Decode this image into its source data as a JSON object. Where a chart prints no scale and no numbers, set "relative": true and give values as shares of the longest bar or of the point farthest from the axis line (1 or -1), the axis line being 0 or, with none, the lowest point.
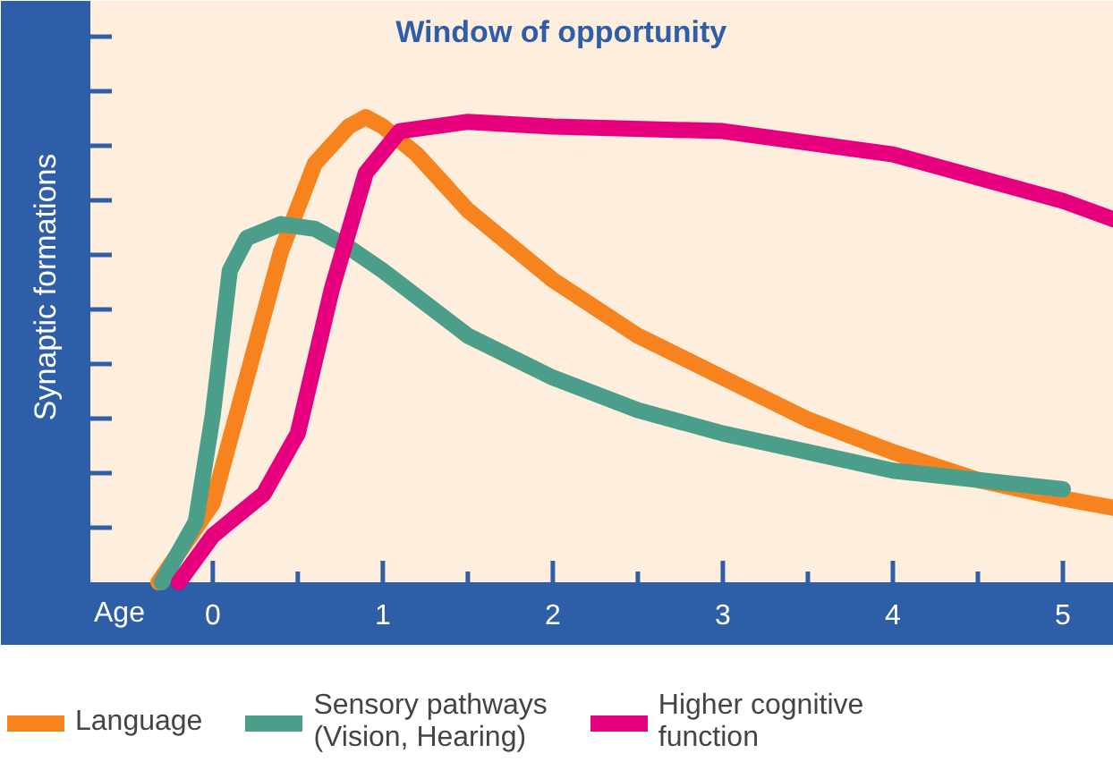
{
  "chart_data": {
    "type": "line",
    "title": "Window of opportunity",
    "xlabel": "Age",
    "ylabel": "Synaptic formations",
    "relative": true,
    "xlim": [
      -0.72,
      5.3
    ],
    "xticks": [
      0,
      1,
      2,
      3,
      4,
      5
    ],
    "grid": false,
    "legend": "bottom",
    "marker": "none",
    "line_style": "solid",
    "series": [
      {
        "name": "Language",
        "color": "#f7831f",
        "x": [
          -0.32,
          0,
          0.2,
          0.4,
          0.6,
          0.8,
          0.9,
          1.0,
          1.2,
          1.5,
          2.0,
          2.5,
          3.0,
          3.5,
          4.0,
          4.5,
          5.0,
          5.3
        ],
        "values": [
          0,
          0.17,
          0.44,
          0.71,
          0.9,
          0.98,
          1.0,
          0.98,
          0.92,
          0.8,
          0.65,
          0.53,
          0.44,
          0.35,
          0.28,
          0.22,
          0.18,
          0.16
        ]
      },
      {
        "name": "Sensory pathways\n(Vision, Hearing)",
        "color": "#4a9e8a",
        "x": [
          -0.3,
          -0.1,
          0,
          0.1,
          0.2,
          0.4,
          0.6,
          0.8,
          1.0,
          1.5,
          2.0,
          2.5,
          3.0,
          3.5,
          4.0,
          4.5,
          5.0
        ],
        "values": [
          0,
          0.13,
          0.36,
          0.67,
          0.74,
          0.77,
          0.76,
          0.72,
          0.67,
          0.53,
          0.44,
          0.37,
          0.32,
          0.28,
          0.24,
          0.22,
          0.2
        ]
      },
      {
        "name": "Higher cognitive\nfunction",
        "color": "#e6007e",
        "x": [
          -0.2,
          0,
          0.3,
          0.5,
          0.7,
          0.9,
          1.1,
          1.5,
          2.0,
          3.0,
          4.0,
          4.5,
          5.0,
          5.3
        ],
        "values": [
          0,
          0.1,
          0.19,
          0.32,
          0.63,
          0.88,
          0.97,
          0.99,
          0.98,
          0.97,
          0.92,
          0.87,
          0.82,
          0.78
        ]
      }
    ]
  }
}
